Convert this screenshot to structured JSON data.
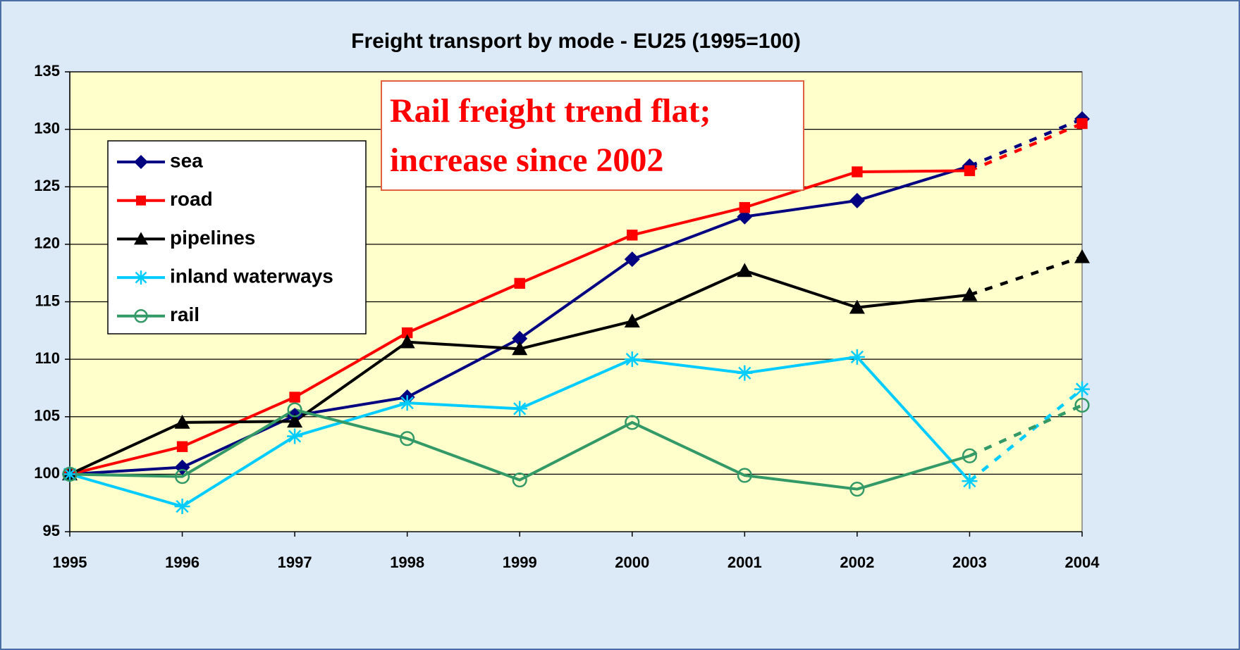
{
  "chart_data": {
    "type": "line",
    "title": "Freight transport by mode - EU25 (1995=100)",
    "annotation": [
      "Rail freight trend flat;",
      "increase since 2002"
    ],
    "categories": [
      "1995",
      "1996",
      "1997",
      "1998",
      "1999",
      "2000",
      "2001",
      "2002",
      "2003",
      "2004"
    ],
    "series": [
      {
        "name": "sea",
        "color": "#000080",
        "marker": "diamond",
        "values": [
          100,
          100.6,
          105.1,
          106.7,
          111.8,
          118.7,
          122.4,
          123.8,
          126.8,
          130.9
        ]
      },
      {
        "name": "road",
        "color": "#ff0000",
        "marker": "square",
        "values": [
          100,
          102.4,
          106.7,
          112.3,
          116.6,
          120.8,
          123.2,
          126.3,
          126.4,
          130.5
        ]
      },
      {
        "name": "pipelines",
        "color": "#000000",
        "marker": "triangle",
        "values": [
          100,
          104.5,
          104.6,
          111.5,
          110.9,
          113.3,
          117.7,
          114.5,
          115.6,
          118.9
        ]
      },
      {
        "name": "inland waterways",
        "color": "#00ccff",
        "marker": "asterisk",
        "values": [
          100,
          97.2,
          103.3,
          106.2,
          105.7,
          110.0,
          108.8,
          110.2,
          99.4,
          107.4
        ]
      },
      {
        "name": "rail",
        "color": "#339966",
        "marker": "circle",
        "values": [
          100,
          99.8,
          105.6,
          103.1,
          99.5,
          104.5,
          99.9,
          98.7,
          101.6,
          106.0
        ]
      }
    ],
    "last_segment_dashed": true,
    "ylim": [
      95,
      135
    ],
    "yticks": [
      95,
      100,
      105,
      110,
      115,
      120,
      125,
      130,
      135
    ],
    "grid": true
  }
}
